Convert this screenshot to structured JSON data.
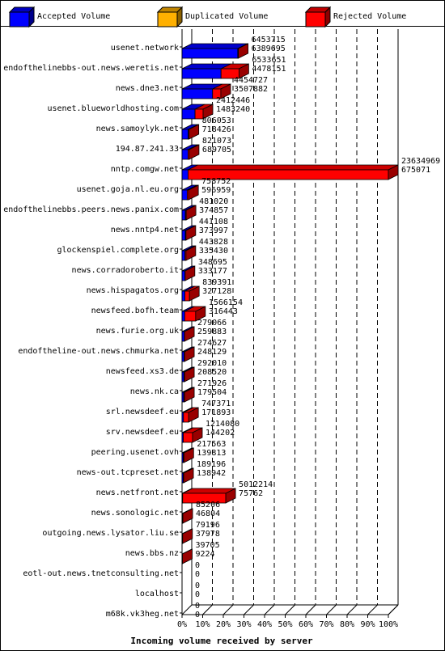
{
  "chart_data": {
    "type": "bar",
    "orientation": "horizontal",
    "stacked": true,
    "xlabel": "Incoming volume received by server",
    "xlim": [
      0,
      100
    ],
    "x_unit": "%",
    "x_ticks": [
      "0%",
      "10%",
      "20%",
      "30%",
      "40%",
      "50%",
      "60%",
      "70%",
      "80%",
      "90%",
      "100%"
    ],
    "grid": "vertical dashed",
    "legend_position": "top",
    "series": [
      {
        "name": "Accepted Volume",
        "color": "#0000ff"
      },
      {
        "name": "Duplicated Volume",
        "color": "#ffb000"
      },
      {
        "name": "Rejected Volume",
        "color": "#ff0000"
      }
    ],
    "rows": [
      {
        "server": "usenet.network",
        "total": 6453715,
        "accepted": 6389695,
        "total_pct": 27.3,
        "accepted_pct": 27.0
      },
      {
        "server": "endofthelinebbs-out.news.weretis.net",
        "total": 6533651,
        "accepted": 4478151,
        "total_pct": 27.6,
        "accepted_pct": 18.9
      },
      {
        "server": "news.dne3.net",
        "total": 4454727,
        "accepted": 3507882,
        "total_pct": 18.8,
        "accepted_pct": 14.8
      },
      {
        "server": "usenet.blueworldhosting.com",
        "total": 2412446,
        "accepted": 1483240,
        "total_pct": 10.2,
        "accepted_pct": 6.3
      },
      {
        "server": "news.samoylyk.net",
        "total": 806053,
        "accepted": 718426,
        "total_pct": 3.4,
        "accepted_pct": 3.0
      },
      {
        "server": "194.87.241.33",
        "total": 821073,
        "accepted": 689705,
        "total_pct": 3.5,
        "accepted_pct": 2.9
      },
      {
        "server": "nntp.comgw.net",
        "total": 23634969,
        "accepted": 675071,
        "total_pct": 100,
        "accepted_pct": 2.9
      },
      {
        "server": "usenet.goja.nl.eu.org",
        "total": 758752,
        "accepted": 596959,
        "total_pct": 3.2,
        "accepted_pct": 2.5
      },
      {
        "server": "endofthelinebbs.peers.news.panix.com",
        "total": 481020,
        "accepted": 374857,
        "total_pct": 2.0,
        "accepted_pct": 1.6
      },
      {
        "server": "news.nntp4.net",
        "total": 441108,
        "accepted": 373997,
        "total_pct": 1.9,
        "accepted_pct": 1.6
      },
      {
        "server": "glockenspiel.complete.org",
        "total": 443828,
        "accepted": 335430,
        "total_pct": 1.9,
        "accepted_pct": 1.4
      },
      {
        "server": "news.corradoroberto.it",
        "total": 348695,
        "accepted": 333177,
        "total_pct": 1.5,
        "accepted_pct": 1.4
      },
      {
        "server": "news.hispagatos.org",
        "total": 839391,
        "accepted": 327128,
        "total_pct": 3.6,
        "accepted_pct": 1.4
      },
      {
        "server": "newsfeed.bofh.team",
        "total": 1566154,
        "accepted": 316443,
        "total_pct": 6.6,
        "accepted_pct": 1.3
      },
      {
        "server": "news.furie.org.uk",
        "total": 279066,
        "accepted": 259883,
        "total_pct": 1.2,
        "accepted_pct": 1.1
      },
      {
        "server": "endoftheline-out.news.chmurka.net",
        "total": 274627,
        "accepted": 248129,
        "total_pct": 1.2,
        "accepted_pct": 1.0
      },
      {
        "server": "newsfeed.xs3.de",
        "total": 292010,
        "accepted": 208520,
        "total_pct": 1.2,
        "accepted_pct": 0.9
      },
      {
        "server": "news.nk.ca",
        "total": 271926,
        "accepted": 179504,
        "total_pct": 1.2,
        "accepted_pct": 0.8
      },
      {
        "server": "srl.newsdeef.eu",
        "total": 747371,
        "accepted": 171893,
        "total_pct": 3.2,
        "accepted_pct": 0.7
      },
      {
        "server": "srv.newsdeef.eu",
        "total": 1214080,
        "accepted": 144202,
        "total_pct": 5.1,
        "accepted_pct": 0.6
      },
      {
        "server": "peering.usenet.ovh",
        "total": 217563,
        "accepted": 139813,
        "total_pct": 0.9,
        "accepted_pct": 0.6
      },
      {
        "server": "news-out.tcpreset.net",
        "total": 189196,
        "accepted": 138942,
        "total_pct": 0.8,
        "accepted_pct": 0.6
      },
      {
        "server": "news.netfront.net",
        "total": 5012214,
        "accepted": 75762,
        "total_pct": 21.2,
        "accepted_pct": 0.3
      },
      {
        "server": "news.sonologic.net",
        "total": 85206,
        "accepted": 46804,
        "total_pct": 0.4,
        "accepted_pct": 0.2
      },
      {
        "server": "outgoing.news.lysator.liu.se",
        "total": 79196,
        "accepted": 37978,
        "total_pct": 0.3,
        "accepted_pct": 0.2
      },
      {
        "server": "news.bbs.nz",
        "total": 39705,
        "accepted": 9224,
        "total_pct": 0.2,
        "accepted_pct": 0.0
      },
      {
        "server": "eotl-out.news.tnetconsulting.net",
        "total": 0,
        "accepted": 0,
        "total_pct": 0,
        "accepted_pct": 0
      },
      {
        "server": "localhost",
        "total": 0,
        "accepted": 0,
        "total_pct": 0,
        "accepted_pct": 0
      },
      {
        "server": "m68k.vk3heg.net",
        "total": 0,
        "accepted": 0,
        "total_pct": 0,
        "accepted_pct": 0
      }
    ]
  }
}
